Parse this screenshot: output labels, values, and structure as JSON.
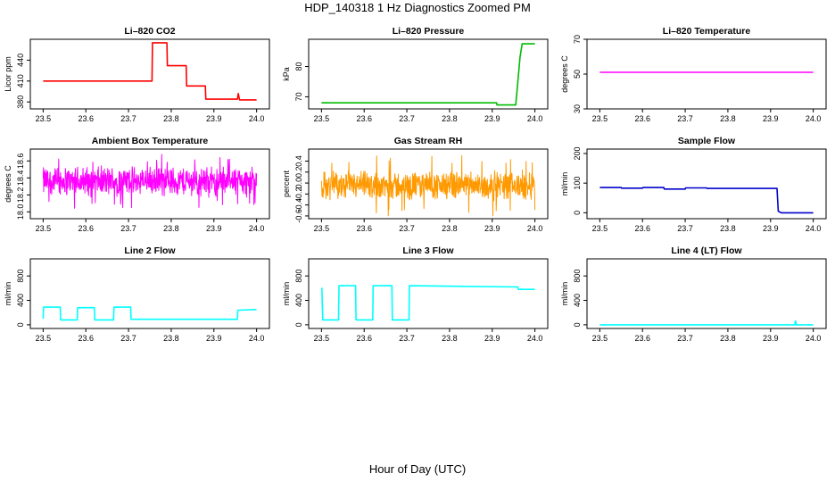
{
  "figure": {
    "title": "HDP_140318  1 Hz Diagnostics Zoomed PM",
    "xlabel": "Hour of Day (UTC)"
  },
  "chart_data": [
    {
      "type": "line",
      "title": "Li–820 CO2",
      "ylabel": "Licor ppm",
      "color": "#ff0000",
      "xlim": [
        23.47,
        24.03
      ],
      "ylim": [
        370,
        470
      ],
      "xticks": [
        "23.5",
        "23.6",
        "23.7",
        "23.8",
        "23.9",
        "24.0"
      ],
      "yticks": [
        "380",
        "410",
        "440"
      ],
      "series": [
        {
          "x": [
            23.5,
            23.755,
            23.756,
            23.79,
            23.791,
            23.835,
            23.836,
            23.88,
            23.881,
            23.955,
            23.957,
            23.96,
            23.962,
            24.0
          ],
          "y": [
            410,
            410,
            465,
            465,
            432,
            432,
            403,
            403,
            384,
            384,
            392,
            383,
            383,
            383
          ]
        }
      ]
    },
    {
      "type": "line",
      "title": "Li–820 Pressure",
      "ylabel": "kPa",
      "color": "#00bb00",
      "xlim": [
        23.47,
        24.03
      ],
      "ylim": [
        66,
        89
      ],
      "xticks": [
        "23.5",
        "23.6",
        "23.7",
        "23.8",
        "23.9",
        "24.0"
      ],
      "yticks": [
        "70",
        "80"
      ],
      "series": [
        {
          "x": [
            23.5,
            23.91,
            23.911,
            23.955,
            23.96,
            23.965,
            23.97,
            24.0
          ],
          "y": [
            68,
            68,
            67.3,
            67.3,
            75,
            83,
            87.5,
            87.5
          ]
        }
      ]
    },
    {
      "type": "line",
      "title": "Li–820 Temperature",
      "ylabel": "degrees C",
      "color": "#ff00ff",
      "xlim": [
        23.47,
        24.03
      ],
      "ylim": [
        30,
        70
      ],
      "xticks": [
        "23.5",
        "23.6",
        "23.7",
        "23.8",
        "23.9",
        "24.0"
      ],
      "yticks": [
        "30",
        "50",
        "70"
      ],
      "series": [
        {
          "x": [
            23.5,
            24.0
          ],
          "y": [
            51,
            51
          ]
        }
      ]
    },
    {
      "type": "line",
      "title": "Ambient Box Temperature",
      "ylabel": "degrees C",
      "color": "#ff00ff",
      "xlim": [
        23.47,
        24.03
      ],
      "ylim": [
        17.92,
        18.74
      ],
      "xticks": [
        "23.5",
        "23.6",
        "23.7",
        "23.8",
        "23.9",
        "24.0"
      ],
      "yticks": [
        "18.0",
        "18.2",
        "18.4",
        "18.6"
      ],
      "series": [
        {
          "noise": true,
          "x_start": 23.5,
          "x_end": 24.0,
          "center": 18.36,
          "amplitude": 0.2,
          "extreme": 0.32
        }
      ]
    },
    {
      "type": "line",
      "title": "Gas Stream RH",
      "ylabel": "percent",
      "color": "#ff9900",
      "xlim": [
        23.47,
        24.03
      ],
      "ylim": [
        -0.65,
        0.62
      ],
      "xticks": [
        "23.5",
        "23.6",
        "23.7",
        "23.8",
        "23.9",
        "24.0"
      ],
      "yticks": [
        "-0.6",
        "-0.4",
        "-0.2",
        "0.0",
        "0.2",
        "0.4"
      ],
      "series": [
        {
          "noise": true,
          "x_start": 23.5,
          "x_end": 24.0,
          "center": -0.05,
          "amplitude": 0.3,
          "extreme": 0.55
        }
      ]
    },
    {
      "type": "line",
      "title": "Sample Flow",
      "ylabel": "ml/min",
      "color": "#0000cc",
      "xlim": [
        23.47,
        24.03
      ],
      "ylim": [
        -20,
        215
      ],
      "xticks": [
        "23.5",
        "23.6",
        "23.7",
        "23.8",
        "23.9",
        "24.0"
      ],
      "yticks": [
        "0",
        "100",
        "200"
      ],
      "series": [
        {
          "x": [
            23.5,
            23.55,
            23.551,
            23.6,
            23.601,
            23.65,
            23.651,
            23.7,
            23.701,
            23.75,
            23.751,
            23.915,
            23.918,
            23.925,
            24.0
          ],
          "y": [
            85,
            85,
            83,
            83,
            85,
            85,
            80,
            80,
            84,
            84,
            82,
            82,
            5,
            0,
            0
          ]
        }
      ]
    },
    {
      "type": "line",
      "title": "Line 2 Flow",
      "ylabel": "ml/min",
      "color": "#00ffff",
      "xlim": [
        23.47,
        24.03
      ],
      "ylim": [
        -60,
        1080
      ],
      "xticks": [
        "23.5",
        "23.6",
        "23.7",
        "23.8",
        "23.9",
        "24.0"
      ],
      "yticks": [
        "0",
        "400",
        "800"
      ],
      "series": [
        {
          "x": [
            23.5,
            23.501,
            23.54,
            23.541,
            23.58,
            23.581,
            23.62,
            23.621,
            23.665,
            23.666,
            23.705,
            23.706,
            23.955,
            23.956,
            24.0
          ],
          "y": [
            100,
            290,
            290,
            80,
            80,
            280,
            280,
            80,
            80,
            290,
            290,
            90,
            90,
            240,
            250
          ]
        }
      ]
    },
    {
      "type": "line",
      "title": "Line 3 Flow",
      "ylabel": "ml/min",
      "color": "#00ffff",
      "xlim": [
        23.47,
        24.03
      ],
      "ylim": [
        -60,
        1080
      ],
      "xticks": [
        "23.5",
        "23.6",
        "23.7",
        "23.8",
        "23.9",
        "24.0"
      ],
      "yticks": [
        "0",
        "400",
        "800"
      ],
      "series": [
        {
          "x": [
            23.5,
            23.501,
            23.503,
            23.54,
            23.541,
            23.58,
            23.581,
            23.62,
            23.621,
            23.665,
            23.666,
            23.705,
            23.706,
            23.96,
            23.961,
            24.0
          ],
          "y": [
            600,
            600,
            80,
            80,
            640,
            640,
            80,
            80,
            640,
            640,
            80,
            80,
            640,
            620,
            580,
            580
          ]
        }
      ]
    },
    {
      "type": "line",
      "title": "Line 4 (LT) Flow",
      "ylabel": "ml/min",
      "color": "#00ffff",
      "xlim": [
        23.47,
        24.03
      ],
      "ylim": [
        -60,
        1080
      ],
      "xticks": [
        "23.5",
        "23.6",
        "23.7",
        "23.8",
        "23.9",
        "24.0"
      ],
      "yticks": [
        "0",
        "400",
        "800"
      ],
      "series": [
        {
          "x": [
            23.5,
            23.957,
            23.958,
            23.959,
            23.96,
            24.0
          ],
          "y": [
            0,
            0,
            60,
            60,
            0,
            0
          ]
        }
      ]
    }
  ]
}
